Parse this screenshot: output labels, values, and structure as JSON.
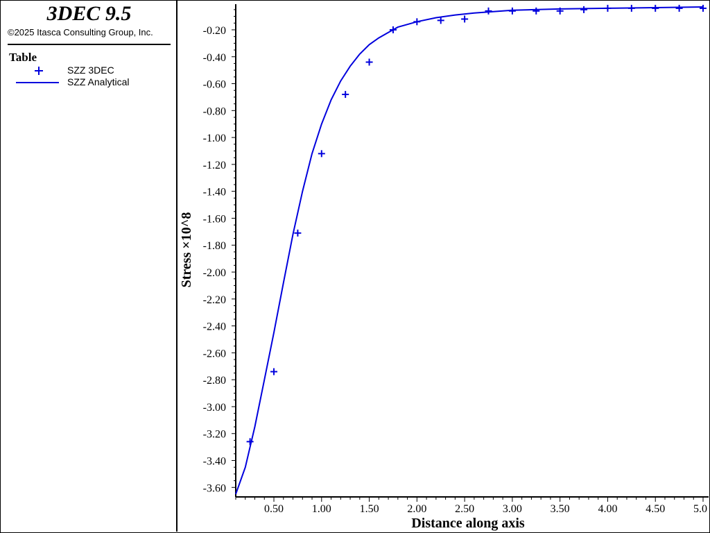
{
  "header": {
    "app_title": "3DEC 9.5",
    "copyright": "©2025 Itasca Consulting Group, Inc."
  },
  "legend": {
    "heading": "Table",
    "items": [
      {
        "label": "SZZ 3DEC",
        "marker": "plus",
        "color": "#0000dd"
      },
      {
        "label": "SZZ Analytical",
        "marker": "line",
        "color": "#0000dd"
      }
    ]
  },
  "chart_data": {
    "type": "line",
    "xlabel": "Distance along axis",
    "ylabel": "Stress ×10^8",
    "xlim": [
      0.1,
      5.0
    ],
    "ylim": [
      -3.65,
      -0.03
    ],
    "x_ticks": [
      "0.50",
      "1.00",
      "1.50",
      "2.00",
      "2.50",
      "3.00",
      "3.50",
      "4.00",
      "4.50",
      "5.0"
    ],
    "x_tick_values": [
      0.5,
      1.0,
      1.5,
      2.0,
      2.5,
      3.0,
      3.5,
      4.0,
      4.5,
      5.0
    ],
    "y_ticks": [
      "-0.20",
      "-0.40",
      "-0.60",
      "-0.80",
      "-1.00",
      "-1.20",
      "-1.40",
      "-1.60",
      "-1.80",
      "-2.00",
      "-2.20",
      "-2.40",
      "-2.60",
      "-2.80",
      "-3.00",
      "-3.20",
      "-3.40",
      "-3.60"
    ],
    "y_tick_values": [
      -0.2,
      -0.4,
      -0.6,
      -0.8,
      -1.0,
      -1.2,
      -1.4,
      -1.6,
      -1.8,
      -2.0,
      -2.2,
      -2.4,
      -2.6,
      -2.8,
      -3.0,
      -3.2,
      -3.4,
      -3.6
    ],
    "series": [
      {
        "name": "SZZ 3DEC",
        "marker": "plus",
        "color": "#0000dd",
        "x": [
          0.25,
          0.5,
          0.75,
          1.0,
          1.25,
          1.5,
          1.75,
          2.0,
          2.25,
          2.5,
          2.75,
          3.0,
          3.25,
          3.5,
          3.75,
          4.0,
          4.25,
          4.5,
          4.75,
          5.0
        ],
        "y": [
          -3.26,
          -2.74,
          -1.71,
          -1.12,
          -0.68,
          -0.44,
          -0.2,
          -0.14,
          -0.13,
          -0.12,
          -0.06,
          -0.06,
          -0.06,
          -0.06,
          -0.05,
          -0.04,
          -0.04,
          -0.04,
          -0.04,
          -0.04
        ]
      },
      {
        "name": "SZZ Analytical",
        "marker": "line",
        "color": "#0000dd",
        "x": [
          0.1,
          0.2,
          0.3,
          0.4,
          0.5,
          0.6,
          0.7,
          0.8,
          0.9,
          1.0,
          1.1,
          1.2,
          1.3,
          1.4,
          1.5,
          1.6,
          1.7,
          1.8,
          1.9,
          2.0,
          2.2,
          2.4,
          2.6,
          2.8,
          3.0,
          3.5,
          4.0,
          4.5,
          5.0
        ],
        "y": [
          -3.65,
          -3.45,
          -3.15,
          -2.8,
          -2.45,
          -2.08,
          -1.72,
          -1.4,
          -1.12,
          -0.9,
          -0.72,
          -0.58,
          -0.47,
          -0.38,
          -0.31,
          -0.26,
          -0.22,
          -0.18,
          -0.16,
          -0.14,
          -0.11,
          -0.09,
          -0.075,
          -0.065,
          -0.055,
          -0.045,
          -0.04,
          -0.035,
          -0.03
        ]
      }
    ]
  }
}
